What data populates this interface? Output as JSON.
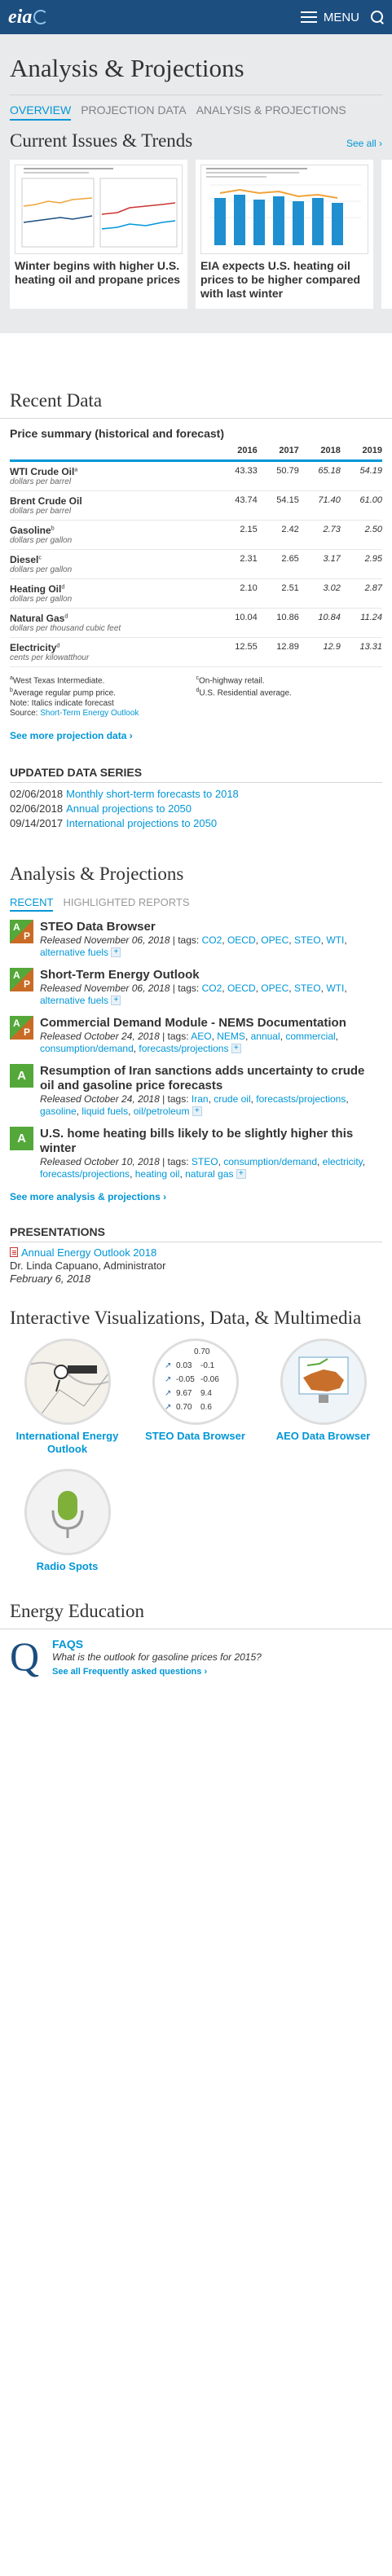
{
  "header": {
    "logo": "eia",
    "menu_label": "MENU"
  },
  "banner": {
    "title": "Analysis & Projections",
    "tabs": [
      {
        "label": "OVERVIEW",
        "active": true
      },
      {
        "label": "PROJECTION DATA",
        "active": false
      },
      {
        "label": "ANALYSIS & PROJECTIONS",
        "active": false
      }
    ]
  },
  "issues": {
    "heading": "Current Issues & Trends",
    "see_all": "See all ›",
    "cards": [
      {
        "title": "Winter begins with higher U.S. heating oil and propane prices"
      },
      {
        "title": "EIA expects U.S. heating oil prices to be higher compared with last winter"
      }
    ]
  },
  "recent_data": {
    "heading": "Recent Data",
    "table_title": "Price summary (historical and forecast)",
    "years": [
      "2016",
      "2017",
      "2018",
      "2019"
    ],
    "rows": [
      {
        "name": "WTI Crude Oil",
        "sup": "a",
        "unit": "dollars per barrel",
        "values": [
          "43.33",
          "50.79",
          "65.18",
          "54.19"
        ]
      },
      {
        "name": "Brent Crude Oil",
        "sup": "",
        "unit": "dollars per barrel",
        "values": [
          "43.74",
          "54.15",
          "71.40",
          "61.00"
        ]
      },
      {
        "name": "Gasoline",
        "sup": "b",
        "unit": "dollars per gallon",
        "values": [
          "2.15",
          "2.42",
          "2.73",
          "2.50"
        ]
      },
      {
        "name": "Diesel",
        "sup": "c",
        "unit": "dollars per gallon",
        "values": [
          "2.31",
          "2.65",
          "3.17",
          "2.95"
        ]
      },
      {
        "name": "Heating Oil",
        "sup": "d",
        "unit": "dollars per gallon",
        "values": [
          "2.10",
          "2.51",
          "3.02",
          "2.87"
        ]
      },
      {
        "name": "Natural Gas",
        "sup": "d",
        "unit": "dollars per thousand cubic feet",
        "values": [
          "10.04",
          "10.86",
          "10.84",
          "11.24"
        ]
      },
      {
        "name": "Electricity",
        "sup": "d",
        "unit": "cents per kilowatthour",
        "values": [
          "12.55",
          "12.89",
          "12.9",
          "13.31"
        ]
      }
    ],
    "notes_left": [
      "aWest Texas Intermediate.",
      "bAverage regular pump price.",
      "Note: Italics indicate forecast"
    ],
    "source_prefix": "Source: ",
    "source_link": "Short-Term Energy Outlook",
    "notes_right": [
      "cOn-highway retail.",
      "dU.S. Residential average."
    ],
    "more": "See more projection data ›"
  },
  "updated": {
    "heading": "UPDATED DATA SERIES",
    "rows": [
      {
        "date": "02/06/2018",
        "label": "Monthly short-term forecasts to 2018"
      },
      {
        "date": "02/06/2018",
        "label": "Annual projections to 2050"
      },
      {
        "date": "09/14/2017",
        "label": "International projections to 2050"
      }
    ]
  },
  "ap": {
    "heading": "Analysis & Projections",
    "tabs": [
      {
        "label": "RECENT",
        "active": true
      },
      {
        "label": "HIGHLIGHTED REPORTS",
        "active": false
      }
    ],
    "items": [
      {
        "badge": "ap",
        "title": "STEO Data Browser",
        "released": "Released November 06, 2018",
        "tags": [
          "CO2",
          "OECD",
          "OPEC",
          "STEO",
          "WTI",
          "alternative fuels"
        ]
      },
      {
        "badge": "ap",
        "title": "Short-Term Energy Outlook",
        "released": "Released November 06, 2018",
        "tags": [
          "CO2",
          "OECD",
          "OPEC",
          "STEO",
          "WTI",
          "alternative fuels"
        ]
      },
      {
        "badge": "ap",
        "title": "Commercial Demand Module - NEMS Documentation",
        "released": "Released October 24, 2018",
        "tags": [
          "AEO",
          "NEMS",
          "annual",
          "commercial",
          "consumption/demand",
          "forecasts/projections"
        ]
      },
      {
        "badge": "a",
        "title": "Resumption of Iran sanctions adds uncertainty to crude oil and gasoline price forecasts",
        "released": "Released October 24, 2018",
        "tags": [
          "Iran",
          "crude oil",
          "forecasts/projections",
          "gasoline",
          "liquid fuels",
          "oil/petroleum"
        ]
      },
      {
        "badge": "a",
        "title": "U.S. home heating bills likely to be slightly higher this winter",
        "released": "Released October 10, 2018",
        "tags": [
          "STEO",
          "consumption/demand",
          "electricity",
          "forecasts/projections",
          "heating oil",
          "natural gas"
        ]
      }
    ],
    "more": "See more analysis & projections ›"
  },
  "presentations": {
    "heading": "PRESENTATIONS",
    "link": "Annual Energy Outlook 2018",
    "presenter": "Dr. Linda Capuano, Administrator",
    "date": "February 6, 2018"
  },
  "ivd": {
    "heading": "Interactive Visualizations, Data, & Multimedia",
    "tiles": [
      {
        "label": "International Energy Outlook"
      },
      {
        "label": "STEO Data Browser"
      },
      {
        "label": "AEO Data Browser"
      },
      {
        "label": "Radio Spots"
      }
    ],
    "steo_numbers": [
      "0.70",
      "0.03",
      "-0.1",
      "-0.05",
      "-0.06",
      "9.67",
      "9.4",
      "0.70",
      "0.6"
    ]
  },
  "edu": {
    "heading": "Energy Education",
    "faq_title": "FAQS",
    "question": "What is the outlook for gasoline prices for 2015?",
    "see_all": "See all Frequently asked questions ›"
  }
}
